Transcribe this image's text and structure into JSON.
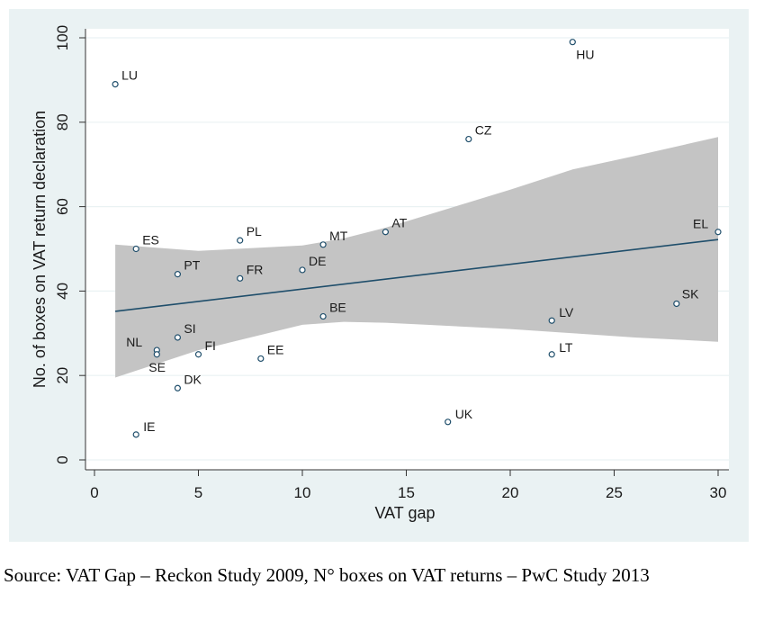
{
  "chart_data": {
    "type": "scatter",
    "title": "",
    "xlabel": "VAT gap",
    "ylabel": "No. of boxes on VAT return declaration",
    "xlim": [
      0,
      30
    ],
    "ylim": [
      0,
      100
    ],
    "x_ticks": [
      0,
      5,
      10,
      15,
      20,
      25,
      30
    ],
    "y_ticks": [
      0,
      20,
      40,
      60,
      80,
      100
    ],
    "grid": "horizontal",
    "legend": "none",
    "points": [
      {
        "label": "LU",
        "x": 1,
        "y": 89
      },
      {
        "label": "HU",
        "x": 23,
        "y": 99
      },
      {
        "label": "CZ",
        "x": 18,
        "y": 76
      },
      {
        "label": "ES",
        "x": 2,
        "y": 50
      },
      {
        "label": "PL",
        "x": 7,
        "y": 52
      },
      {
        "label": "MT",
        "x": 11,
        "y": 51
      },
      {
        "label": "AT",
        "x": 14,
        "y": 54
      },
      {
        "label": "EL",
        "x": 30,
        "y": 54
      },
      {
        "label": "PT",
        "x": 4,
        "y": 44
      },
      {
        "label": "FR",
        "x": 7,
        "y": 43
      },
      {
        "label": "DE",
        "x": 10,
        "y": 45
      },
      {
        "label": "SK",
        "x": 28,
        "y": 37
      },
      {
        "label": "BE",
        "x": 11,
        "y": 34
      },
      {
        "label": "LV",
        "x": 22,
        "y": 33
      },
      {
        "label": "SI",
        "x": 4,
        "y": 29
      },
      {
        "label": "NL",
        "x": 3,
        "y": 26
      },
      {
        "label": "SE",
        "x": 3,
        "y": 25
      },
      {
        "label": "FI",
        "x": 5,
        "y": 25
      },
      {
        "label": "EE",
        "x": 8,
        "y": 24
      },
      {
        "label": "LT",
        "x": 22,
        "y": 25
      },
      {
        "label": "DK",
        "x": 4,
        "y": 17
      },
      {
        "label": "UK",
        "x": 17,
        "y": 9
      },
      {
        "label": "IE",
        "x": 2,
        "y": 6
      }
    ],
    "fit_line": {
      "x": [
        1,
        30
      ],
      "y": [
        35.2,
        52.2
      ]
    },
    "confidence_band": {
      "x": [
        1,
        5,
        10,
        12,
        14,
        16,
        18,
        20,
        23,
        26,
        30
      ],
      "upper": [
        51,
        49.5,
        50.8,
        52.5,
        55,
        58,
        61,
        64,
        68.8,
        72,
        76.5
      ],
      "lower": [
        19.5,
        26,
        32,
        32.7,
        32.5,
        32,
        31.5,
        31,
        30,
        29,
        28
      ]
    },
    "colors": {
      "panel_background": "#eaf2f3",
      "plot_background": "#ffffff",
      "band": "#c4c4c4",
      "fit_line": "#1f4e6b",
      "marker": "#1f4e6b",
      "grid": "#eaf2f3",
      "text": "#1a1a1a"
    }
  },
  "footer": {
    "source": "Source: VAT Gap – Reckon Study 2009, N° boxes on VAT returns – PwC Study 2013"
  }
}
